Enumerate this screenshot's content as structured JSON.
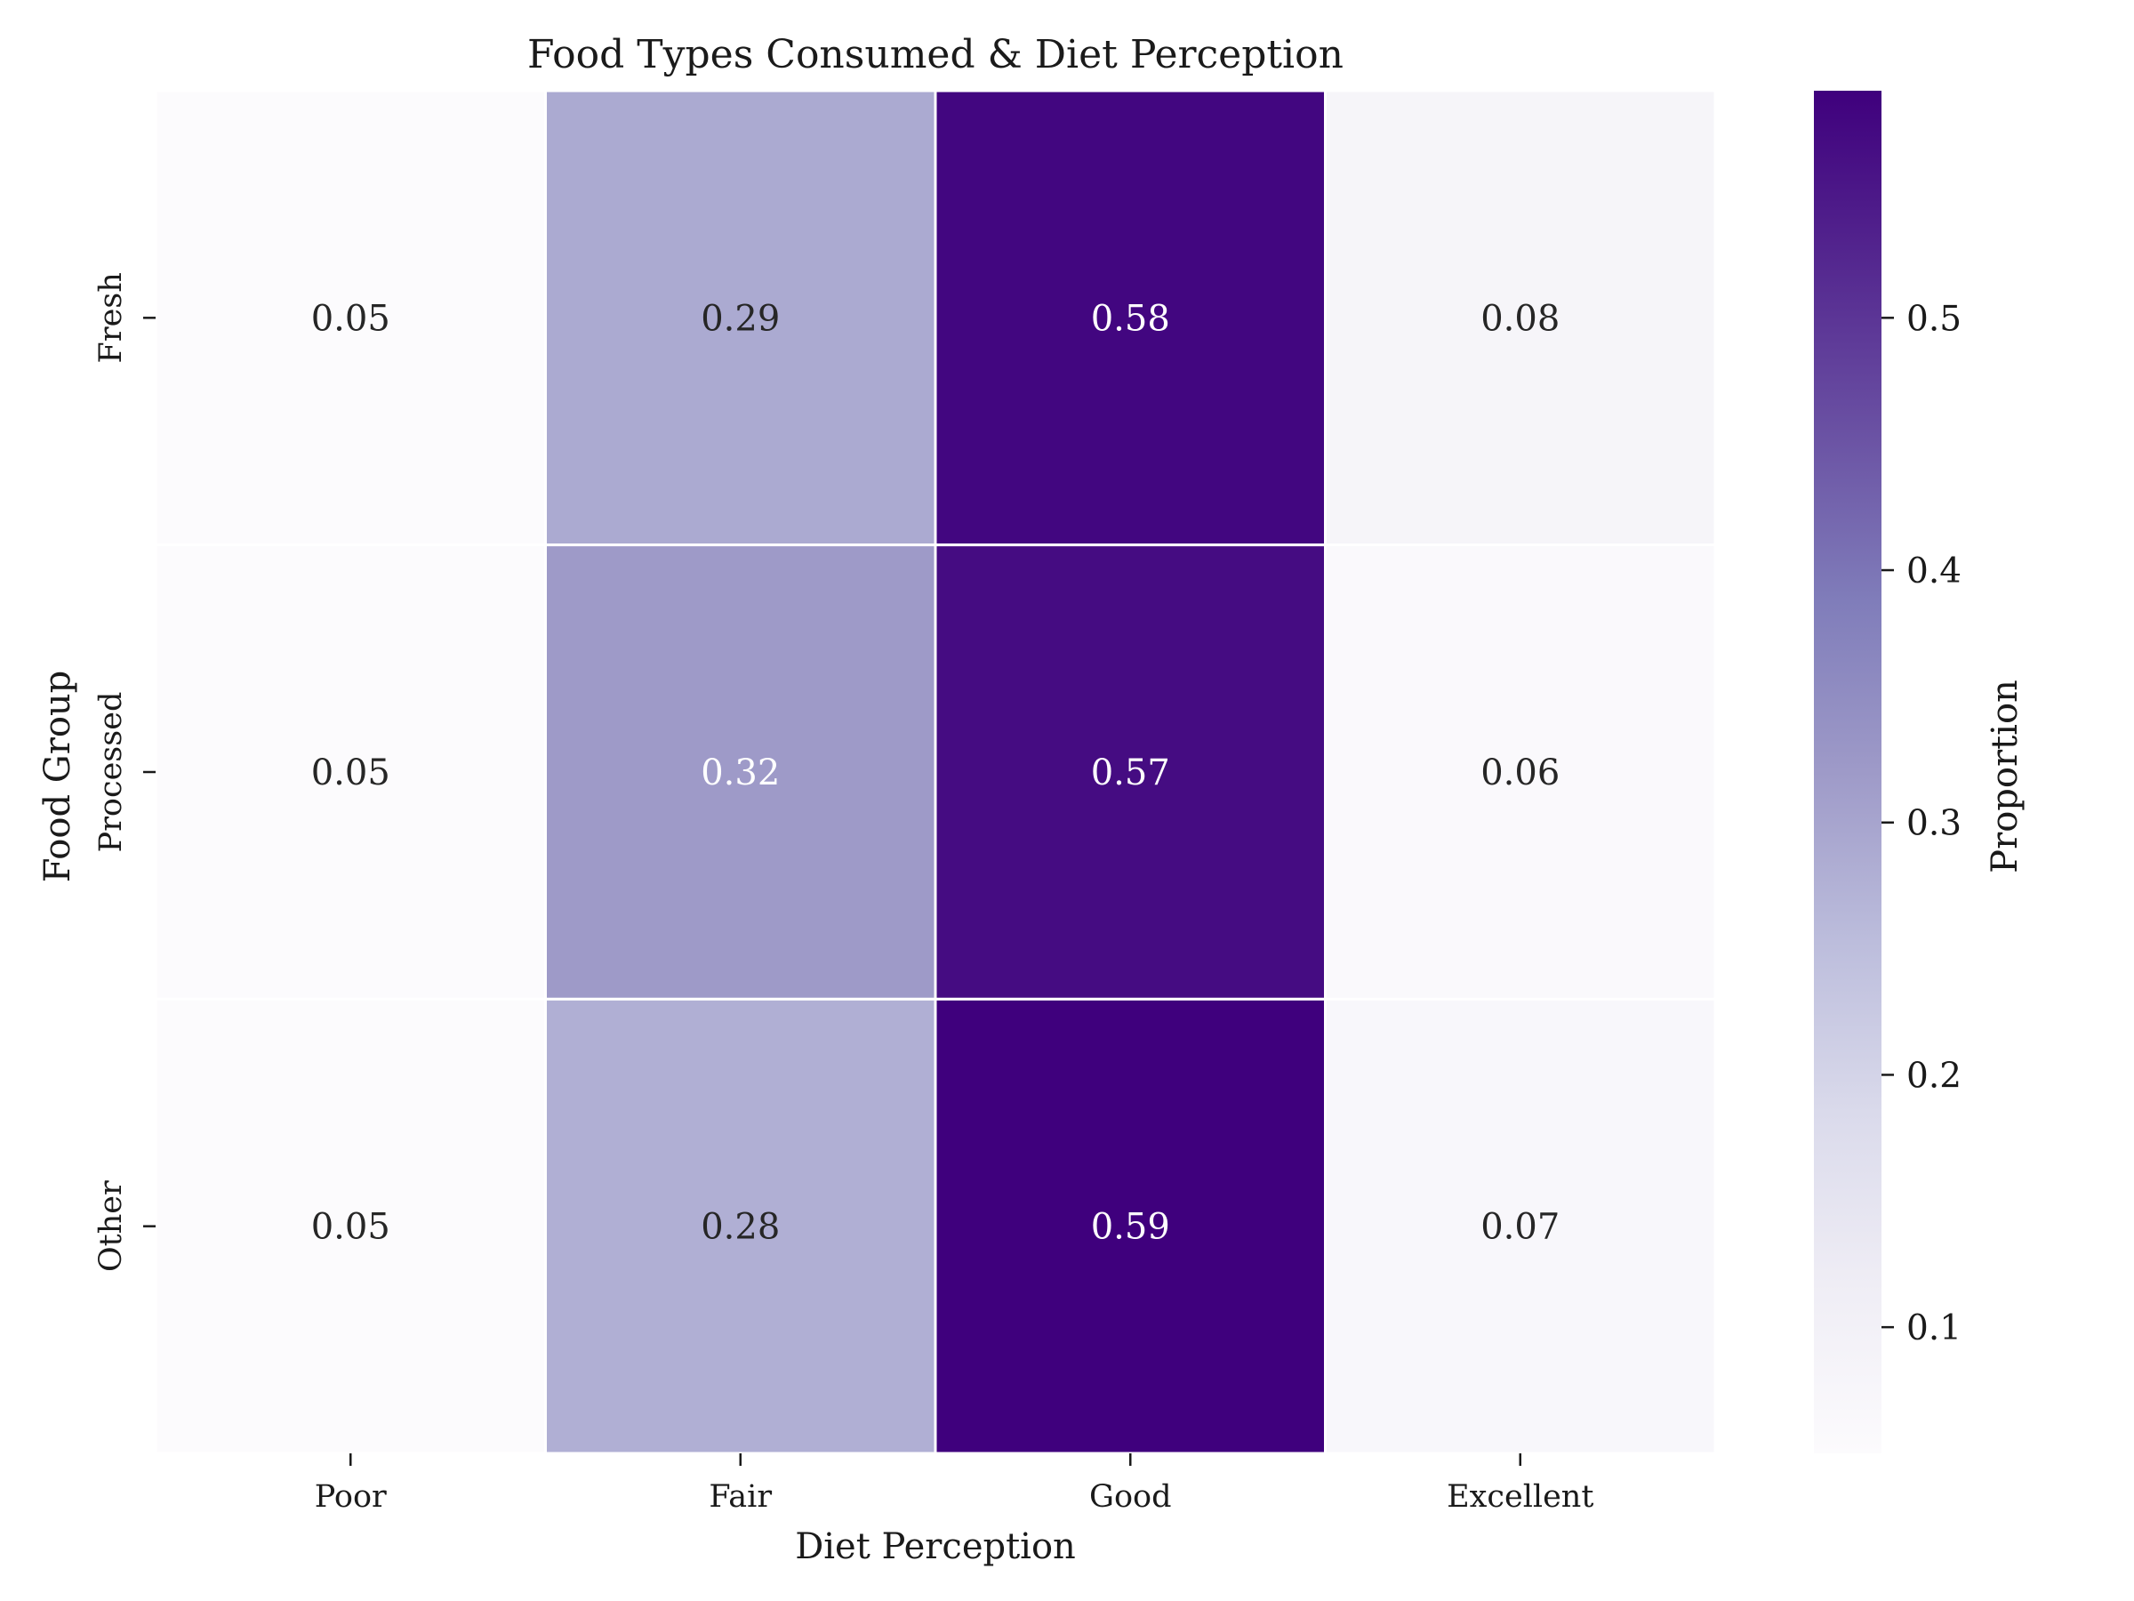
{
  "chart_data": {
    "type": "heatmap",
    "title": "Food Types Consumed & Diet Perception",
    "xlabel": "Diet Perception",
    "ylabel": "Food Group",
    "x_categories": [
      "Poor",
      "Fair",
      "Good",
      "Excellent"
    ],
    "y_categories": [
      "Fresh",
      "Processed",
      "Other"
    ],
    "values": [
      [
        0.05,
        0.29,
        0.58,
        0.08
      ],
      [
        0.05,
        0.32,
        0.57,
        0.06
      ],
      [
        0.05,
        0.28,
        0.59,
        0.07
      ]
    ],
    "value_labels": [
      [
        "0.05",
        "0.29",
        "0.58",
        "0.08"
      ],
      [
        "0.05",
        "0.32",
        "0.57",
        "0.06"
      ],
      [
        "0.05",
        "0.28",
        "0.59",
        "0.07"
      ]
    ],
    "colormap": "Purples",
    "color_range": [
      0.05,
      0.59
    ],
    "colorbar": {
      "label": "Proportion",
      "ticks": [
        0.1,
        0.2,
        0.3,
        0.4,
        0.5
      ],
      "tick_labels": [
        "0.1",
        "0.2",
        "0.3",
        "0.4",
        "0.5"
      ]
    },
    "cell_separator_color": "#ffffff",
    "grid": false
  }
}
